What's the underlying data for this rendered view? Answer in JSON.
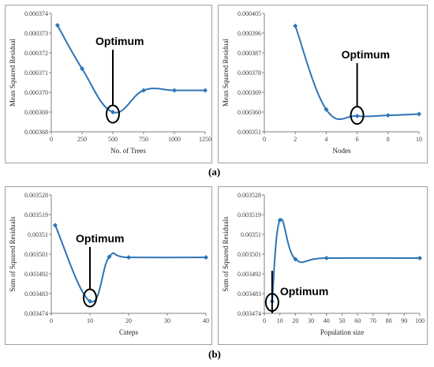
{
  "captions": {
    "a": "(a)",
    "b": "(b)"
  },
  "colors": {
    "line": "#2e75b6",
    "marker": "#2e75b6",
    "axis": "#808080",
    "annotation": "#000000"
  },
  "chart_data": [
    {
      "id": "trees",
      "type": "line",
      "xlabel": "No. of Trees",
      "ylabel": "Mean Squared Residual",
      "xlim": [
        0,
        1250
      ],
      "ylim": [
        0.000368,
        0.000374
      ],
      "xticks": [
        0,
        250,
        500,
        750,
        1000,
        1250
      ],
      "xtick_labels": [
        "0",
        "250",
        "500",
        "750",
        "1000",
        "1250"
      ],
      "yticks": [
        0.000368,
        0.000369,
        0.00037,
        0.000371,
        0.000372,
        0.000373,
        0.000374
      ],
      "ytick_labels": [
        "0.000368",
        "0.000369",
        "0.000370",
        "0.000371",
        "0.000372",
        "0.000373",
        "0.000374"
      ],
      "x": [
        50,
        250,
        500,
        750,
        1000,
        1250
      ],
      "y": [
        0.0003734,
        0.0003712,
        0.000369,
        0.0003701,
        0.0003701,
        0.0003701
      ],
      "annotation": {
        "text": "Optimum",
        "x": 500,
        "y": 0.0003689
      }
    },
    {
      "id": "nodes",
      "type": "line",
      "xlabel": "Nodes",
      "ylabel": "Mean Squared Residual",
      "xlim": [
        0,
        10
      ],
      "ylim": [
        0.000351,
        0.000405
      ],
      "xticks": [
        0,
        2,
        4,
        6,
        8,
        10
      ],
      "xtick_labels": [
        "0",
        "2",
        "4",
        "6",
        "8",
        "10"
      ],
      "yticks": [
        0.000351,
        0.00036,
        0.000369,
        0.000378,
        0.000387,
        0.000396,
        0.000405
      ],
      "ytick_labels": [
        "0.000351",
        "0.000360",
        "0.000369",
        "0.000378",
        "0.000387",
        "0.000396",
        "0.000405"
      ],
      "x": [
        2,
        4,
        6,
        8,
        10
      ],
      "y": [
        0.0003993,
        0.0003612,
        0.0003582,
        0.0003585,
        0.0003591
      ],
      "annotation": {
        "text": "Optimum",
        "x": 6,
        "y": 0.0003585
      }
    },
    {
      "id": "csteps",
      "type": "line",
      "xlabel": "Csteps",
      "ylabel": "Sum of Squared Residuals",
      "xlim": [
        0,
        40
      ],
      "ylim": [
        0.003474,
        0.003528
      ],
      "xticks": [
        0,
        10,
        20,
        30,
        40
      ],
      "xtick_labels": [
        "0",
        "10",
        "20",
        "30",
        "40"
      ],
      "yticks": [
        0.003474,
        0.003483,
        0.003492,
        0.003501,
        0.00351,
        0.003519,
        0.003528
      ],
      "ytick_labels": [
        "0.003474",
        "0.003483",
        "0.003492",
        "0.003501",
        "0.00351",
        "0.003519",
        "0.003528"
      ],
      "x": [
        1,
        10,
        15,
        20,
        40
      ],
      "y": [
        0.0035142,
        0.0034795,
        0.0034998,
        0.0034995,
        0.0034995
      ],
      "annotation": {
        "text": "Optimum",
        "x": 10,
        "y": 0.003481
      }
    },
    {
      "id": "population",
      "type": "line",
      "xlabel": "Population size",
      "ylabel": "Sum of Squared Residuals",
      "xlim": [
        0,
        100
      ],
      "ylim": [
        0.003474,
        0.003528
      ],
      "xticks": [
        0,
        10,
        20,
        30,
        40,
        50,
        60,
        70,
        80,
        90,
        100
      ],
      "xtick_labels": [
        "0",
        "10",
        "20",
        "30",
        "40",
        "50",
        "60",
        "70",
        "80",
        "90",
        "100"
      ],
      "yticks": [
        0.003474,
        0.003483,
        0.003492,
        0.003501,
        0.00351,
        0.003519,
        0.003528
      ],
      "ytick_labels": [
        "0.003474",
        "0.003483",
        "0.003492",
        "0.003501",
        "0.00351",
        "0.003519",
        "0.003528"
      ],
      "x": [
        5,
        10,
        20,
        40,
        100
      ],
      "y": [
        0.0034795,
        0.0035165,
        0.0034987,
        0.0034992,
        0.0034992
      ],
      "annotation": {
        "text": "Optimum",
        "x": 5,
        "y": 0.003479
      }
    }
  ]
}
